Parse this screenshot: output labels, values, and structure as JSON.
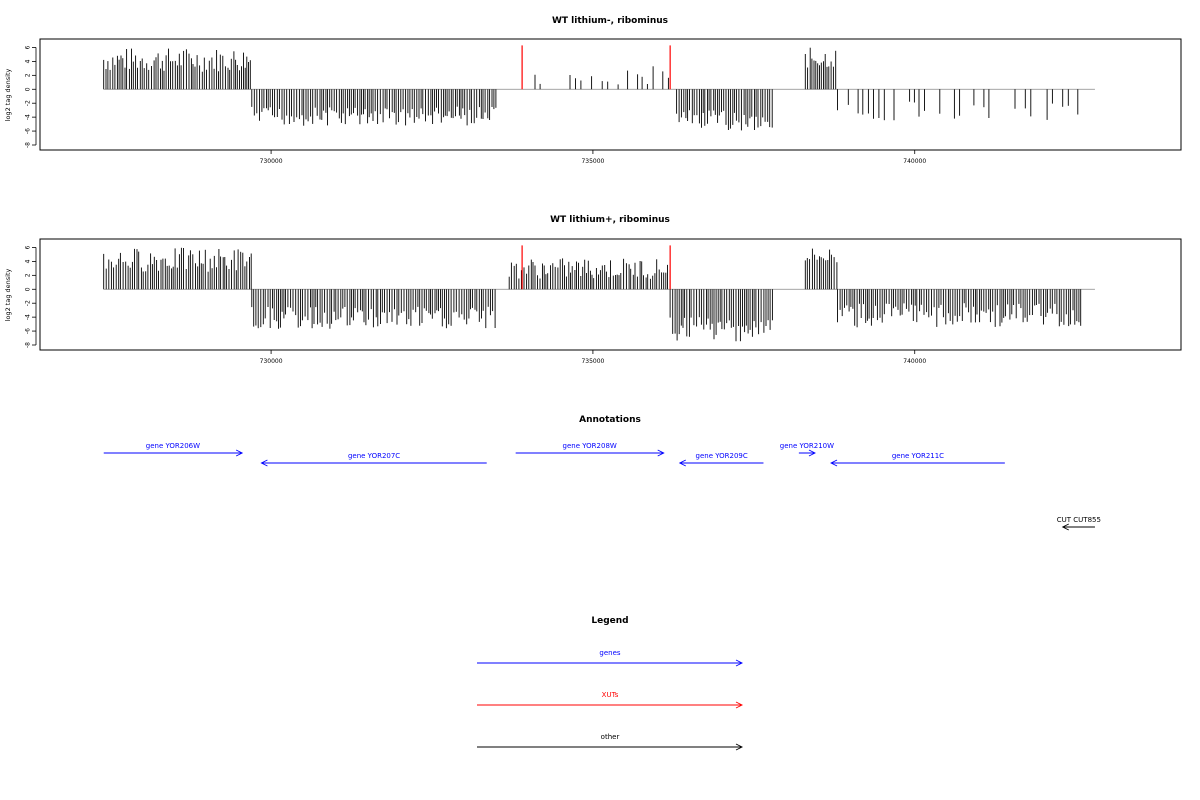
{
  "chart_data": [
    {
      "type": "bar",
      "title": "WT lithium-, ribominus",
      "xlabel": "",
      "ylabel": "log2 tag density",
      "xlim": [
        727000,
        743500
      ],
      "ylim": [
        -8,
        6.5
      ],
      "yticks": [
        6,
        4,
        2,
        0,
        -2,
        -4,
        -6,
        -8
      ],
      "xticks": [
        730000,
        735000,
        740000
      ],
      "xtick_labels": [
        "730000",
        "735000",
        "740000"
      ],
      "segments": [
        {
          "x0": 727400,
          "x1": 729700,
          "y_min": 2.5,
          "y_max": 6.0,
          "sign": 1
        },
        {
          "x0": 729700,
          "x1": 733500,
          "y_min": -2.5,
          "y_max": -5.3,
          "sign": -1
        },
        {
          "x0": 734100,
          "x1": 736200,
          "y_min": 0.5,
          "y_max": 3.5,
          "sign": 1,
          "sparse": true
        },
        {
          "x0": 736300,
          "x1": 737800,
          "y_min": -3.0,
          "y_max": -6.0,
          "sign": -1
        },
        {
          "x0": 738300,
          "x1": 738800,
          "y_min": 3.0,
          "y_max": 6.0,
          "sign": 1
        },
        {
          "x0": 738800,
          "x1": 742600,
          "y_min": -1.5,
          "y_max": -4.5,
          "sign": -1,
          "sparse": true
        }
      ],
      "highlights": [
        {
          "x": 733900,
          "y": 6.3,
          "color": "#ff0000"
        },
        {
          "x": 736200,
          "y": 6.3,
          "color": "#ff0000"
        }
      ]
    },
    {
      "type": "bar",
      "title": "WT lithium+, ribominus",
      "xlabel": "",
      "ylabel": "log2 tag density",
      "xlim": [
        727000,
        743500
      ],
      "ylim": [
        -8,
        6.5
      ],
      "yticks": [
        6,
        4,
        2,
        0,
        -2,
        -4,
        -6,
        -8
      ],
      "xticks": [
        730000,
        735000,
        740000
      ],
      "xtick_labels": [
        "730000",
        "735000",
        "740000"
      ],
      "segments": [
        {
          "x0": 727400,
          "x1": 729700,
          "y_min": 2.5,
          "y_max": 6.0,
          "sign": 1
        },
        {
          "x0": 729700,
          "x1": 733500,
          "y_min": -2.5,
          "y_max": -5.8,
          "sign": -1
        },
        {
          "x0": 733700,
          "x1": 736200,
          "y_min": 1.5,
          "y_max": 4.5,
          "sign": 1
        },
        {
          "x0": 736200,
          "x1": 737800,
          "y_min": -4.0,
          "y_max": -7.5,
          "sign": -1
        },
        {
          "x0": 738300,
          "x1": 738800,
          "y_min": 3.5,
          "y_max": 6.0,
          "sign": 1
        },
        {
          "x0": 738800,
          "x1": 742600,
          "y_min": -2.0,
          "y_max": -5.5,
          "sign": -1
        }
      ],
      "highlights": [
        {
          "x": 733900,
          "y": 6.3,
          "color": "#ff0000"
        },
        {
          "x": 736200,
          "y": 6.3,
          "color": "#ff0000"
        }
      ]
    }
  ],
  "annotations": {
    "title": "Annotations",
    "features": [
      {
        "label": "gene YOR206W",
        "x0": 727400,
        "x1": 729550,
        "dir": "right",
        "row": 1,
        "color": "#0000ff"
      },
      {
        "label": "gene YOR207C",
        "x0": 729850,
        "x1": 733350,
        "dir": "left",
        "row": 2,
        "color": "#0000ff"
      },
      {
        "label": "gene YOR208W",
        "x0": 733800,
        "x1": 736100,
        "dir": "right",
        "row": 1,
        "color": "#0000ff"
      },
      {
        "label": "gene YOR209C",
        "x0": 736350,
        "x1": 737650,
        "dir": "left",
        "row": 2,
        "color": "#0000ff"
      },
      {
        "label": "gene YOR210W",
        "x0": 738200,
        "x1": 738450,
        "dir": "right",
        "row": 1,
        "color": "#0000ff"
      },
      {
        "label": "gene YOR211C",
        "x0": 738700,
        "x1": 741400,
        "dir": "left",
        "row": 2,
        "color": "#0000ff"
      },
      {
        "label": "CUT CUT855",
        "x0": 742300,
        "x1": 742800,
        "dir": "left",
        "row": 3,
        "color": "#000000"
      }
    ]
  },
  "legend": {
    "title": "Legend",
    "items": [
      {
        "label": "genes",
        "color": "#0000ff"
      },
      {
        "label": "XUTs",
        "color": "#ff0000"
      },
      {
        "label": "other",
        "color": "#000000"
      }
    ]
  }
}
